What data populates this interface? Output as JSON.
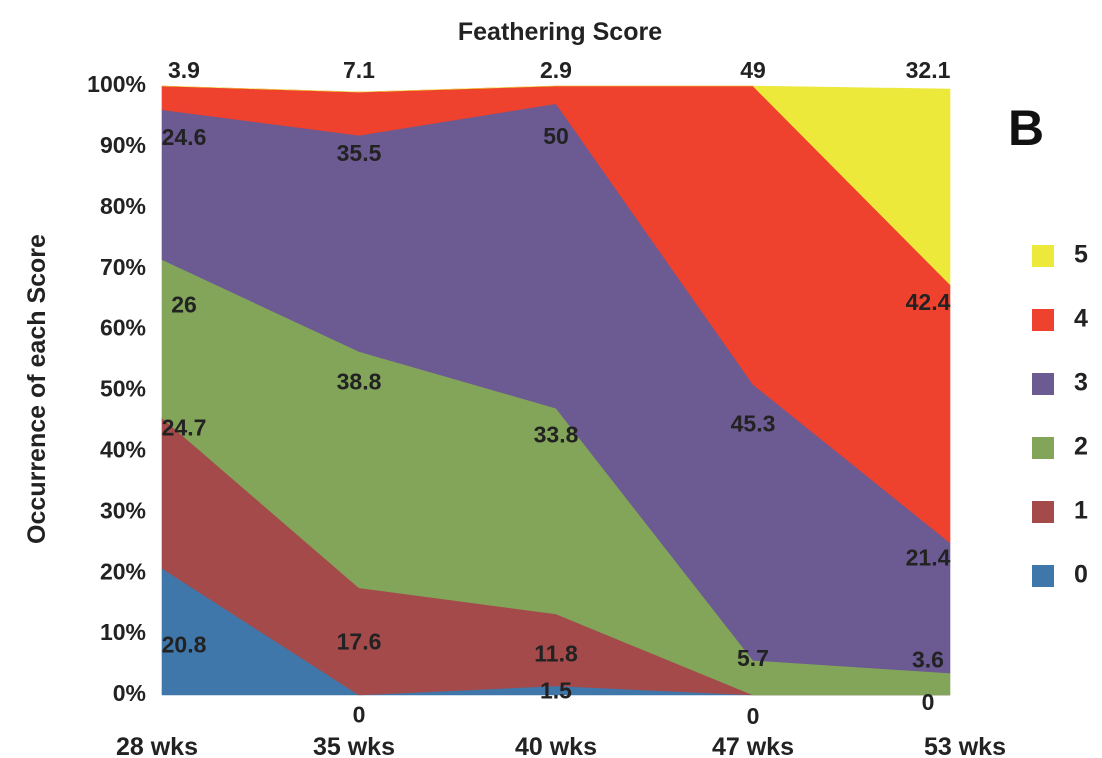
{
  "chart_data": {
    "type": "area",
    "stacked": true,
    "title": "Feathering Score",
    "ylabel": "Occurrence of each Score",
    "xlabel": "",
    "panel_label": "B",
    "categories": [
      "28 wks",
      "35 wks",
      "40 wks",
      "47 wks",
      "53 wks"
    ],
    "ylim": [
      0,
      100
    ],
    "y_ticks": [
      "0%",
      "10%",
      "20%",
      "30%",
      "40%",
      "50%",
      "60%",
      "70%",
      "80%",
      "90%",
      "100%"
    ],
    "legend_position": "right",
    "series": [
      {
        "name": "0",
        "color": "#3f77aa",
        "values": [
          20.8,
          0,
          1.5,
          0,
          0
        ]
      },
      {
        "name": "1",
        "color": "#a44a4a",
        "values": [
          24.7,
          17.6,
          11.8,
          0,
          0
        ]
      },
      {
        "name": "2",
        "color": "#82a55a",
        "values": [
          26,
          38.8,
          33.8,
          5.7,
          3.6
        ]
      },
      {
        "name": "3",
        "color": "#6c5a92",
        "values": [
          24.6,
          35.5,
          50,
          45.3,
          21.4
        ]
      },
      {
        "name": "4",
        "color": "#ee412e",
        "values": [
          3.9,
          7.1,
          2.9,
          49,
          42.4
        ]
      },
      {
        "name": "5",
        "color": "#ede93a",
        "values": [
          0,
          0,
          0,
          0,
          32.1
        ]
      }
    ],
    "data_labels": [
      {
        "text": "20.8",
        "xi": 0,
        "y": 8
      },
      {
        "text": "24.7",
        "xi": 0,
        "y": 43.6
      },
      {
        "text": "26",
        "xi": 0,
        "y": 63.8
      },
      {
        "text": "24.6",
        "xi": 0,
        "y": 91.3
      },
      {
        "text": "0",
        "xi": 1,
        "y": -3.5
      },
      {
        "text": "17.6",
        "xi": 1,
        "y": 8.5
      },
      {
        "text": "38.8",
        "xi": 1,
        "y": 51.2
      },
      {
        "text": "35.5",
        "xi": 1,
        "y": 88.7
      },
      {
        "text": "1.5",
        "xi": 2,
        "y": 0.4
      },
      {
        "text": "11.8",
        "xi": 2,
        "y": 6.5
      },
      {
        "text": "33.8",
        "xi": 2,
        "y": 42.5
      },
      {
        "text": "50",
        "xi": 2,
        "y": 91.5
      },
      {
        "text": "0",
        "xi": 3,
        "y": -3.8
      },
      {
        "text": "5.7",
        "xi": 3,
        "y": 5.8
      },
      {
        "text": "45.3",
        "xi": 3,
        "y": 44.3
      },
      {
        "text": "0",
        "xi": 4,
        "y": -1.5
      },
      {
        "text": "3.6",
        "xi": 4,
        "y": 5.5
      },
      {
        "text": "21.4",
        "xi": 4,
        "y": 22.3
      },
      {
        "text": "42.4",
        "xi": 4,
        "y": 64.2
      }
    ],
    "top_labels": [
      "3.9",
      "7.1",
      "2.9",
      "49",
      "32.1"
    ]
  }
}
